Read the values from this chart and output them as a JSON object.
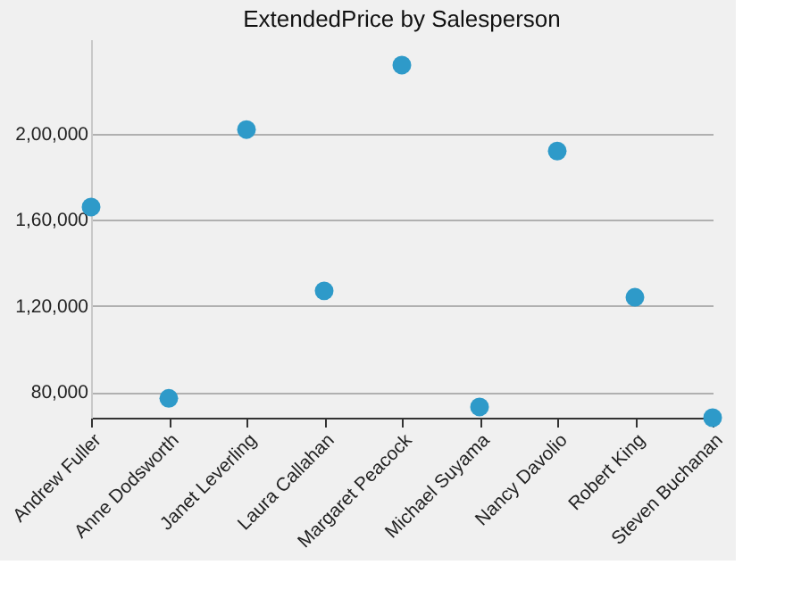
{
  "chart_data": {
    "type": "scatter",
    "title": "ExtendedPrice by Salesperson",
    "categories": [
      "Andrew Fuller",
      "Anne Dodsworth",
      "Janet Leverling",
      "Laura Callahan",
      "Margaret Peacock",
      "Michael Suyama",
      "Nancy Davolio",
      "Robert King",
      "Steven Buchanan"
    ],
    "series": [
      {
        "color": "#2e9ac9",
        "values": [
          166000,
          77000,
          202000,
          127000,
          232000,
          73000,
          192000,
          124000,
          68000
        ]
      }
    ],
    "ylim": [
      68000,
      244000
    ],
    "yticks": [
      {
        "value": 80000,
        "label": "80,000"
      },
      {
        "value": 120000,
        "label": "1,20,000"
      },
      {
        "value": 160000,
        "label": "1,60,000"
      },
      {
        "value": 200000,
        "label": "2,00,000"
      }
    ],
    "grid": "y",
    "marker": "circle"
  }
}
